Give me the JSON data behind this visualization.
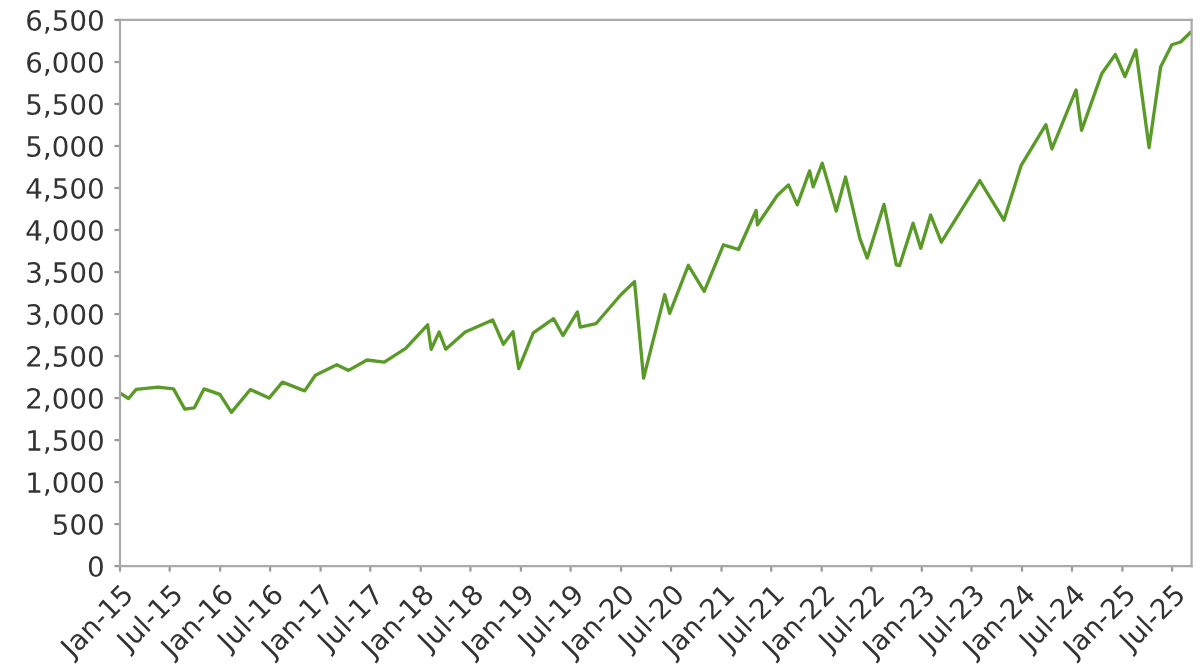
{
  "chart_data": {
    "type": "line",
    "x": [
      "2015-01-02",
      "2015-02-01",
      "2015-03-01",
      "2015-05-20",
      "2015-07-15",
      "2015-08-25",
      "2015-09-29",
      "2015-11-03",
      "2015-12-31",
      "2016-02-11",
      "2016-04-20",
      "2016-06-27",
      "2016-08-15",
      "2016-11-04",
      "2016-12-13",
      "2017-03-01",
      "2017-04-13",
      "2017-06-19",
      "2017-08-21",
      "2017-11-07",
      "2018-01-26",
      "2018-02-08",
      "2018-03-09",
      "2018-04-02",
      "2018-06-12",
      "2018-09-20",
      "2018-10-29",
      "2018-12-03",
      "2018-12-24",
      "2019-02-15",
      "2019-04-30",
      "2019-06-03",
      "2019-07-26",
      "2019-08-05",
      "2019-10-02",
      "2019-12-31",
      "2020-02-19",
      "2020-03-23",
      "2020-06-08",
      "2020-06-26",
      "2020-09-02",
      "2020-10-30",
      "2021-01-08",
      "2021-03-04",
      "2021-05-07",
      "2021-05-12",
      "2021-07-23",
      "2021-09-02",
      "2021-10-04",
      "2021-11-18",
      "2021-12-01",
      "2022-01-03",
      "2022-02-23",
      "2022-03-29",
      "2022-05-20",
      "2022-06-16",
      "2022-08-16",
      "2022-09-30",
      "2022-10-12",
      "2022-11-30",
      "2022-12-28",
      "2023-02-02",
      "2023-03-13",
      "2023-07-31",
      "2023-10-27",
      "2023-12-29",
      "2024-03-28",
      "2024-04-19",
      "2024-07-16",
      "2024-08-05",
      "2024-10-18",
      "2024-12-06",
      "2025-01-10",
      "2025-02-19",
      "2025-04-08",
      "2025-05-20",
      "2025-06-30",
      "2025-08-01",
      "2025-09-05"
    ],
    "series": [
      {
        "color": "#5a9a28",
        "values": [
          2058,
          1995,
          2104,
          2130,
          2110,
          1868,
          1884,
          2109,
          2044,
          1829,
          2102,
          2000,
          2190,
          2085,
          2271,
          2396,
          2329,
          2453,
          2428,
          2591,
          2872,
          2581,
          2786,
          2582,
          2786,
          2930,
          2641,
          2790,
          2351,
          2775,
          2945,
          2744,
          3025,
          2844,
          2887,
          3230,
          3386,
          2237,
          3232,
          3009,
          3580,
          3270,
          3824,
          3768,
          4232,
          4063,
          4411,
          4537,
          4300,
          4704,
          4513,
          4796,
          4225,
          4631,
          3900,
          3666,
          4305,
          3585,
          3577,
          4080,
          3783,
          4179,
          3855,
          4589,
          4117,
          4770,
          5254,
          4967,
          5667,
          5186,
          5864,
          6090,
          5827,
          6144,
          4982,
          5940,
          6205,
          6238,
          6350
        ]
      }
    ],
    "xlim": [
      "2015-01-01",
      "2025-09-10"
    ],
    "xticks": [
      {
        "value": "2015-01-01",
        "label": "Jan-15"
      },
      {
        "value": "2015-07-01",
        "label": "Jul-15"
      },
      {
        "value": "2016-01-01",
        "label": "Jan-16"
      },
      {
        "value": "2016-07-01",
        "label": "Jul-16"
      },
      {
        "value": "2017-01-01",
        "label": "Jan-17"
      },
      {
        "value": "2017-07-01",
        "label": "Jul-17"
      },
      {
        "value": "2018-01-01",
        "label": "Jan-18"
      },
      {
        "value": "2018-07-01",
        "label": "Jul-18"
      },
      {
        "value": "2019-01-01",
        "label": "Jan-19"
      },
      {
        "value": "2019-07-01",
        "label": "Jul-19"
      },
      {
        "value": "2020-01-01",
        "label": "Jan-20"
      },
      {
        "value": "2020-07-01",
        "label": "Jul-20"
      },
      {
        "value": "2021-01-01",
        "label": "Jan-21"
      },
      {
        "value": "2021-07-01",
        "label": "Jul-21"
      },
      {
        "value": "2022-01-01",
        "label": "Jan-22"
      },
      {
        "value": "2022-07-01",
        "label": "Jul-22"
      },
      {
        "value": "2023-01-01",
        "label": "Jan-23"
      },
      {
        "value": "2023-07-01",
        "label": "Jul-23"
      },
      {
        "value": "2024-01-01",
        "label": "Jan-24"
      },
      {
        "value": "2024-07-01",
        "label": "Jul-24"
      },
      {
        "value": "2025-01-01",
        "label": "Jan-25"
      },
      {
        "value": "2025-07-01",
        "label": "Jul-25"
      }
    ],
    "ylim": [
      0,
      6500
    ],
    "yticks": [
      {
        "value": 0,
        "label": "0"
      },
      {
        "value": 500,
        "label": "500"
      },
      {
        "value": 1000,
        "label": "1,000"
      },
      {
        "value": 1500,
        "label": "1,500"
      },
      {
        "value": 2000,
        "label": "2,000"
      },
      {
        "value": 2500,
        "label": "2,500"
      },
      {
        "value": 3000,
        "label": "3,000"
      },
      {
        "value": 3500,
        "label": "3,500"
      },
      {
        "value": 4000,
        "label": "4,000"
      },
      {
        "value": 4500,
        "label": "4,500"
      },
      {
        "value": 5000,
        "label": "5,000"
      },
      {
        "value": 5500,
        "label": "5,500"
      },
      {
        "value": 6000,
        "label": "6,000"
      },
      {
        "value": 6500,
        "label": "6,500"
      }
    ]
  }
}
